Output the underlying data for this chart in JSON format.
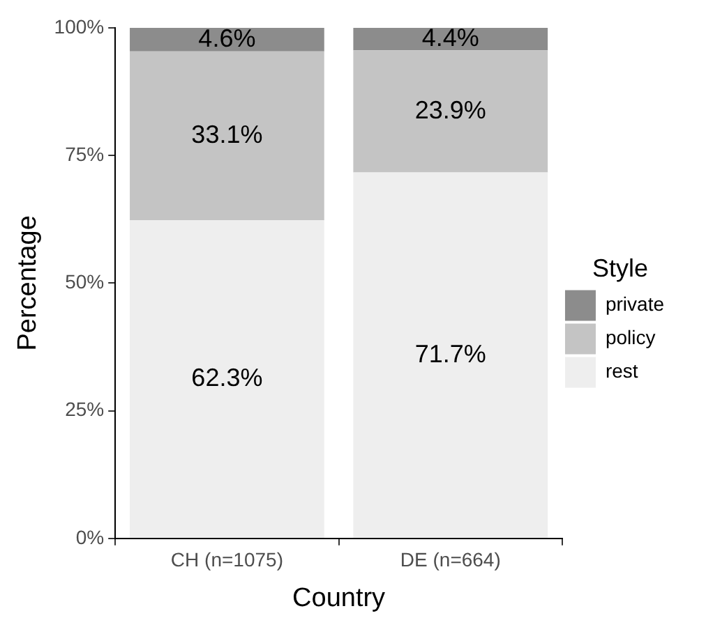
{
  "chart_data": {
    "type": "bar",
    "stacked": true,
    "xlabel": "Country",
    "ylabel": "Percentage",
    "legend_title": "Style",
    "legend": "right",
    "grid": false,
    "categories": [
      "CH (n=1075)",
      "DE (n=664)"
    ],
    "series": [
      {
        "name": "rest",
        "color": "#eeeeee",
        "values": [
          62.3,
          71.7
        ],
        "value_labels": [
          "62.3%",
          "71.7%"
        ]
      },
      {
        "name": "policy",
        "color": "#c4c4c4",
        "values": [
          33.1,
          23.9
        ],
        "value_labels": [
          "33.1%",
          "23.9%"
        ]
      },
      {
        "name": "private",
        "color": "#8c8c8c",
        "values": [
          4.6,
          4.4
        ],
        "value_labels": [
          "4.6%",
          "4.4%"
        ]
      }
    ],
    "ylim": [
      0,
      100
    ],
    "yticks": [
      {
        "value": 0,
        "label": "0%"
      },
      {
        "value": 25,
        "label": "25%"
      },
      {
        "value": 50,
        "label": "50%"
      },
      {
        "value": 75,
        "label": "75%"
      },
      {
        "value": 100,
        "label": "100%"
      }
    ]
  }
}
